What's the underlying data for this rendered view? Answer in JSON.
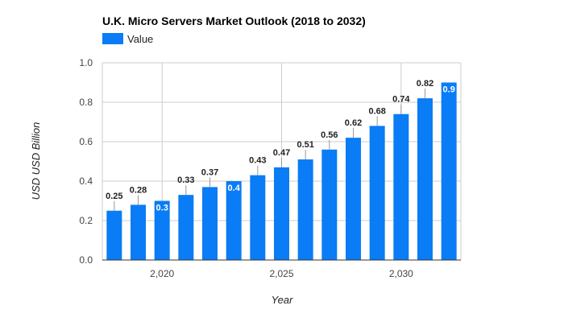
{
  "chart_data": {
    "type": "bar",
    "title": "U.K.  Micro Servers Market Outlook (2018 to 2032)",
    "xlabel": "Year",
    "ylabel": "USD USD Billion",
    "legend": {
      "position": "top-left",
      "entries": [
        "Value"
      ]
    },
    "series": [
      {
        "name": "Value",
        "color": "#0a7cf5",
        "x": [
          2018,
          2019,
          2020,
          2021,
          2022,
          2023,
          2024,
          2025,
          2026,
          2027,
          2028,
          2029,
          2030,
          2031,
          2032
        ],
        "values": [
          0.25,
          0.28,
          0.3,
          0.33,
          0.37,
          0.4,
          0.43,
          0.47,
          0.51,
          0.56,
          0.62,
          0.68,
          0.74,
          0.82,
          0.9
        ],
        "labels": [
          "0.25",
          "0.28",
          "0.3",
          "0.33",
          "0.37",
          "0.4",
          "0.43",
          "0.47",
          "0.51",
          "0.56",
          "0.62",
          "0.68",
          "0.74",
          "0.82",
          "0.9"
        ],
        "label_inside": [
          false,
          false,
          true,
          false,
          false,
          true,
          false,
          false,
          false,
          false,
          false,
          false,
          false,
          false,
          true
        ]
      }
    ],
    "ylim": [
      0,
      1
    ],
    "yticks": [
      0.0,
      0.2,
      0.4,
      0.6,
      0.8,
      1.0
    ],
    "ytick_labels": [
      "0.0",
      "0.2",
      "0.4",
      "0.6",
      "0.8",
      "1.0"
    ],
    "xlim": [
      2017.5,
      2032.5
    ],
    "xticks": [
      2020,
      2025,
      2030
    ],
    "xtick_labels": [
      "2,020",
      "2,025",
      "2,030"
    ],
    "grid": true
  }
}
